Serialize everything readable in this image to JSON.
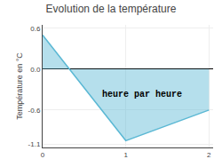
{
  "chart_data": {
    "type": "area",
    "title": "Evolution de la température",
    "ylabel": "Température en °C",
    "x": [
      0,
      1,
      2
    ],
    "values": [
      0.5,
      -1.05,
      -0.6
    ],
    "color": "#5bb8d4",
    "xlim": [
      0,
      2.05
    ],
    "ylim": [
      -1.15,
      0.65
    ],
    "xticks": [
      0,
      1,
      2
    ],
    "yticks": [
      -1.1,
      -0.6,
      {
        "value": 0.0,
        "label": "0.0"
      },
      0.6
    ],
    "grid": true,
    "annotations": [
      {
        "text": "heure par heure",
        "x": 1.2,
        "y": -0.38
      }
    ]
  }
}
